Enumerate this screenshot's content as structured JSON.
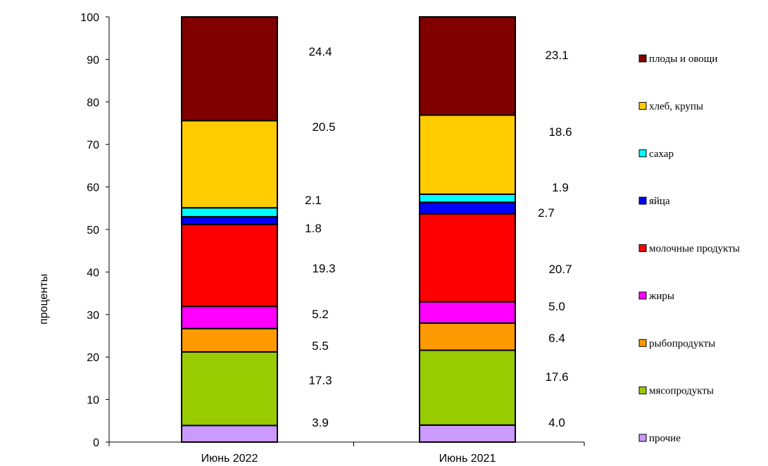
{
  "chart_data": {
    "type": "bar",
    "stacked": true,
    "ylabel": "проценты",
    "ylim": [
      0,
      100
    ],
    "yticks": [
      0,
      10,
      20,
      30,
      40,
      50,
      60,
      70,
      80,
      90,
      100
    ],
    "categories": [
      "Июнь 2022",
      "Июнь 2021"
    ],
    "series": [
      {
        "name": "прочие",
        "color": "#CC99FF",
        "values": [
          3.9,
          4.0
        ],
        "labels": [
          "3.9",
          "4.0"
        ]
      },
      {
        "name": "мясопродукты",
        "color": "#99CC00",
        "values": [
          17.3,
          17.6
        ],
        "labels": [
          "17.3",
          "17.6"
        ]
      },
      {
        "name": "рыбопродукты",
        "color": "#FF9900",
        "values": [
          5.5,
          6.4
        ],
        "labels": [
          "5.5",
          "6.4"
        ]
      },
      {
        "name": "жиры",
        "color": "#FF00FF",
        "values": [
          5.2,
          5.0
        ],
        "labels": [
          "5.2",
          "5.0"
        ]
      },
      {
        "name": "молочные продукты",
        "color": "#FF0000",
        "values": [
          19.3,
          20.7
        ],
        "labels": [
          "19.3",
          "20.7"
        ]
      },
      {
        "name": "яйца",
        "color": "#0000FF",
        "values": [
          1.8,
          2.7
        ],
        "labels": [
          "1.8",
          "2.7"
        ]
      },
      {
        "name": "сахар",
        "color": "#00FFFF",
        "values": [
          2.1,
          1.9
        ],
        "labels": [
          "2.1",
          "1.9"
        ]
      },
      {
        "name": "хлеб, крупы",
        "color": "#FFCC00",
        "values": [
          20.5,
          18.6
        ],
        "labels": [
          "20.5",
          "18.6"
        ]
      },
      {
        "name": "плоды и овощи",
        "color": "#800000",
        "values": [
          24.4,
          23.1
        ],
        "labels": [
          "24.4",
          "23.1"
        ]
      }
    ],
    "legend_position": "right",
    "grid": false
  }
}
